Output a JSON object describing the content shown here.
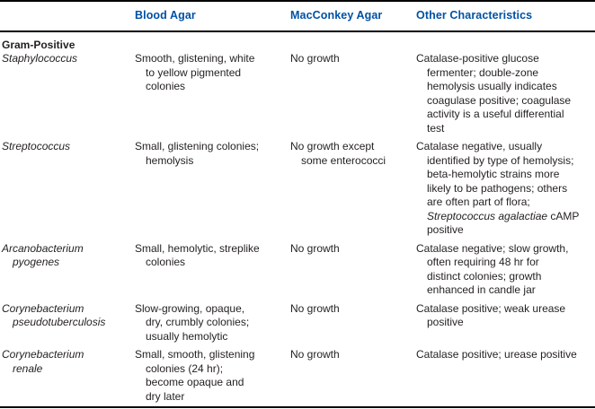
{
  "colors": {
    "accent": "#0051a5",
    "body_text": "#231f20",
    "rule": "#000000"
  },
  "title_row": {
    "organism_col": "",
    "blood_agar": "Blood Agar",
    "macconkey_agar": "MacConkey Agar",
    "other_characteristics": "Other Characteristics"
  },
  "section_label": "Gram-Positive",
  "rows": [
    {
      "organism": "Staphylococcus",
      "blood_agar": "Smooth, glistening, white\nto yellow pigmented\ncolonies",
      "macconkey_agar": "No growth",
      "other": [
        {
          "text": "Catalase-positive glucose\nfermenter; double-zone\nhemolysis usually indicates\ncoagulase positive; coagulase\nactivity is a useful differential\ntest",
          "italic": false
        }
      ]
    },
    {
      "organism": "Streptococcus",
      "blood_agar": "Small, glistening colonies;\nhemolysis",
      "macconkey_agar": "No growth except\nsome enterococci",
      "other": [
        {
          "text": "Catalase negative, usually\nidentified by type of hemolysis;\nbeta-hemolytic strains more\nlikely to be pathogens; others\nare often part of flora;\n",
          "italic": false
        },
        {
          "text": "Streptococcus agalactiae",
          "italic": true
        },
        {
          "text": " cAMP\npositive",
          "italic": false
        }
      ]
    },
    {
      "organism": "Arcanobacterium\npyogenes",
      "blood_agar": "Small, hemolytic, streplike\ncolonies",
      "macconkey_agar": "No growth",
      "other": [
        {
          "text": "Catalase negative; slow growth,\noften requiring 48 hr for\ndistinct colonies; growth\nenhanced in candle jar",
          "italic": false
        }
      ]
    },
    {
      "organism": "Corynebacterium\npseudotuberculosis",
      "blood_agar": "Slow-growing, opaque,\ndry, crumbly colonies;\nusually hemolytic",
      "macconkey_agar": "No growth",
      "other": [
        {
          "text": "Catalase positive; weak urease\npositive",
          "italic": false
        }
      ]
    },
    {
      "organism": "Corynebacterium\nrenale",
      "blood_agar": "Small, smooth, glistening\ncolonies (24 hr);\nbecome opaque and\ndry later",
      "macconkey_agar": "No growth",
      "other": [
        {
          "text": "Catalase positive; urease positive",
          "italic": false
        }
      ]
    }
  ]
}
